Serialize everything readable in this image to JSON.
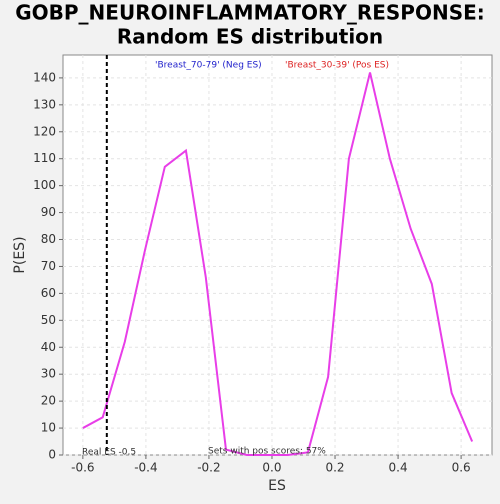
{
  "chart_data": {
    "type": "line",
    "title": [
      "GOBP_NEUROINFLAMMATORY_RESPONSE:",
      "Random ES distribution"
    ],
    "x_label": "ES",
    "y_label": "P(ES)",
    "legend": [
      "'Breast_70-79' (Neg ES)",
      "'Breast_30-39' (Pos ES)"
    ],
    "legend_colors": [
      "#2222cc",
      "#dd2222"
    ],
    "x": [
      -0.6,
      -0.537,
      -0.467,
      -0.403,
      -0.34,
      -0.273,
      -0.21,
      -0.146,
      -0.08,
      -0.015,
      0.05,
      0.114,
      0.178,
      0.244,
      0.311,
      0.374,
      0.44,
      0.507,
      0.57,
      0.635
    ],
    "series": [
      {
        "name": "P(ES)",
        "color": "#e83ee8",
        "values": [
          10,
          14,
          42,
          76,
          107,
          113,
          66,
          2,
          0,
          0,
          0,
          1,
          29,
          110,
          142,
          110,
          84,
          63.5,
          23,
          5
        ]
      }
    ],
    "xlim": [
      -0.663,
      0.698
    ],
    "ylim": [
      0,
      148.5
    ],
    "xticks": [
      -0.6,
      -0.4,
      -0.2,
      {
        "value": 0,
        "label": "0.0"
      },
      0.2,
      0.4,
      0.6
    ],
    "yticks": [
      0,
      10,
      20,
      30,
      40,
      50,
      60,
      70,
      80,
      90,
      100,
      110,
      120,
      130,
      140
    ],
    "grid": true,
    "annotations": [
      {
        "text": "Real ES -0.5",
        "x": -0.524
      },
      {
        "text": "Sets with pos scores: 57%"
      }
    ]
  }
}
